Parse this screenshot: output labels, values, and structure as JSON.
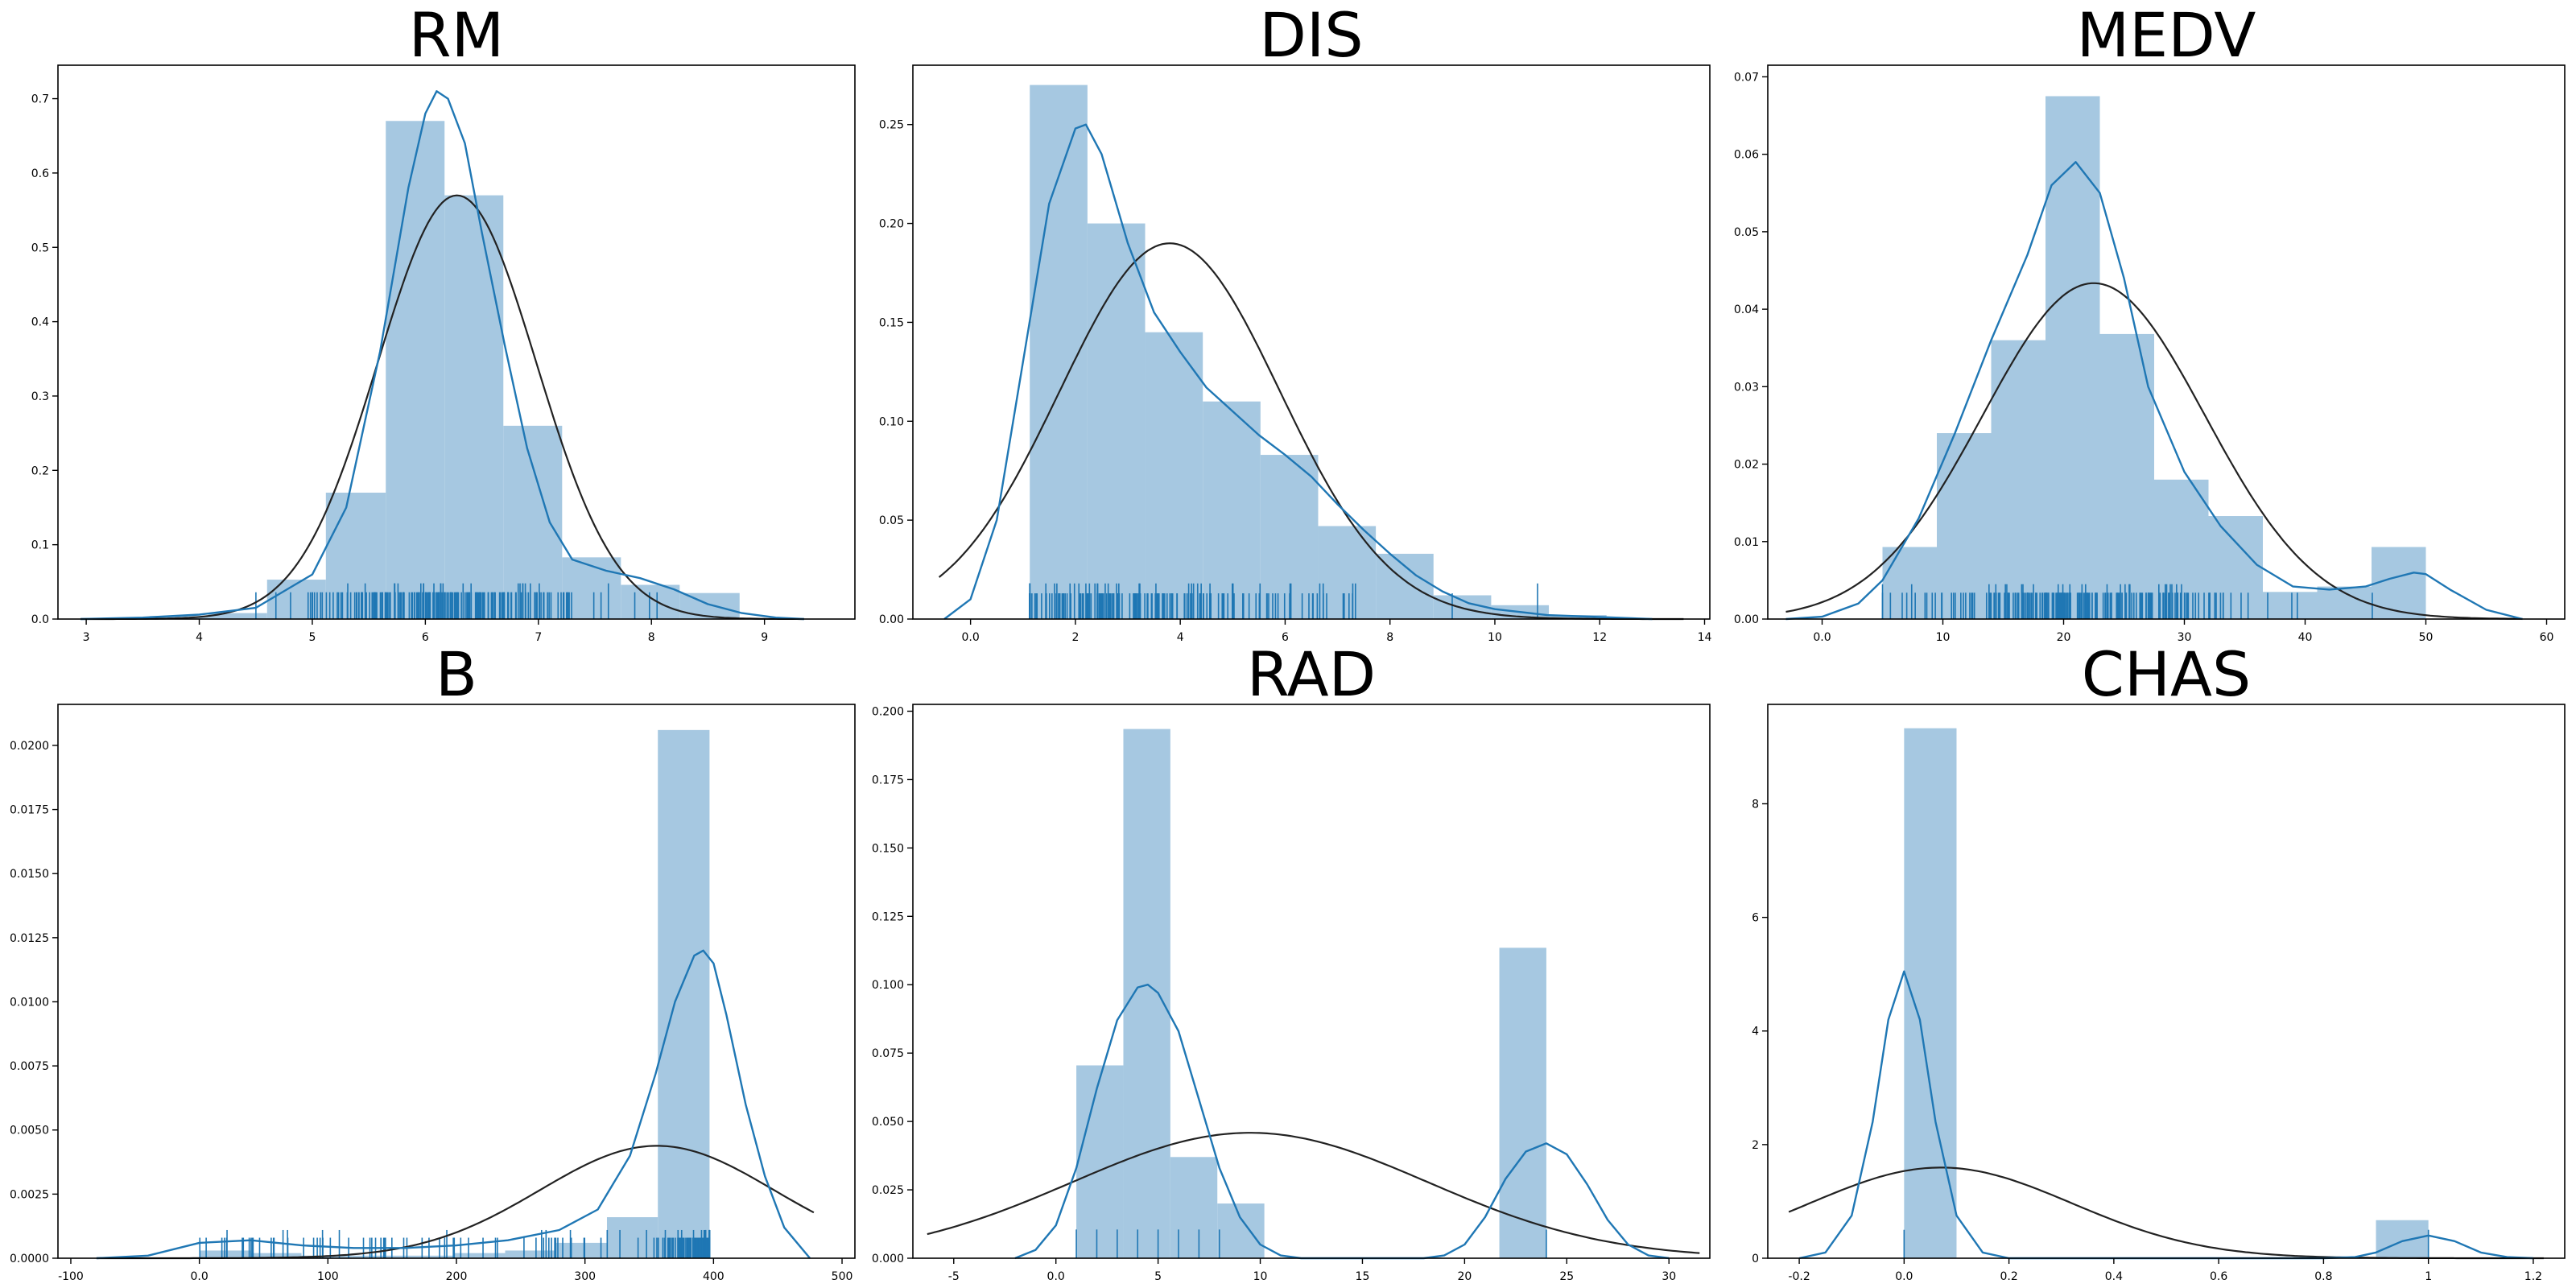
{
  "figure": {
    "colors": {
      "hist": "#a6c8e1",
      "kde": "#1f77b4",
      "rug": "#1f77b4",
      "fit": "#222222"
    }
  },
  "chart_data": [
    {
      "type": "bar",
      "title": "RM",
      "xlim": [
        2.75,
        9.8
      ],
      "ylim": [
        0,
        0.745
      ],
      "xticks": [
        3,
        4,
        5,
        6,
        7,
        8,
        9
      ],
      "yticks": [
        0.0,
        0.1,
        0.2,
        0.3,
        0.4,
        0.5,
        0.6,
        0.7
      ],
      "ytick_decimals": 1,
      "hist": {
        "edges": [
          3.56,
          4.08,
          4.6,
          5.12,
          5.65,
          6.17,
          6.69,
          7.21,
          7.73,
          8.25,
          8.78
        ],
        "heights": [
          0.004,
          0.008,
          0.053,
          0.17,
          0.67,
          0.57,
          0.26,
          0.083,
          0.046,
          0.035
        ]
      },
      "kde": [
        [
          2.95,
          0
        ],
        [
          3.5,
          0.002
        ],
        [
          4,
          0.006
        ],
        [
          4.5,
          0.015
        ],
        [
          5,
          0.06
        ],
        [
          5.3,
          0.15
        ],
        [
          5.6,
          0.36
        ],
        [
          5.85,
          0.58
        ],
        [
          6.0,
          0.68
        ],
        [
          6.1,
          0.71
        ],
        [
          6.2,
          0.7
        ],
        [
          6.35,
          0.64
        ],
        [
          6.5,
          0.52
        ],
        [
          6.7,
          0.37
        ],
        [
          6.9,
          0.23
        ],
        [
          7.1,
          0.13
        ],
        [
          7.3,
          0.08
        ],
        [
          7.6,
          0.065
        ],
        [
          7.9,
          0.055
        ],
        [
          8.2,
          0.04
        ],
        [
          8.5,
          0.02
        ],
        [
          8.8,
          0.008
        ],
        [
          9.1,
          0.002
        ],
        [
          9.35,
          0
        ]
      ],
      "normal": {
        "mean": 6.28,
        "sd": 0.7,
        "from": 2.95,
        "to": 9.35
      },
      "rug": {
        "count": 220,
        "min": 3.6,
        "max": 8.8,
        "mode": 6.2,
        "spread": 0.7,
        "tall": 0.048,
        "short": 0.036
      }
    },
    {
      "type": "bar",
      "title": "DIS",
      "xlim": [
        -1.1,
        14.1
      ],
      "ylim": [
        0,
        0.28
      ],
      "xticks": [
        0,
        2,
        4,
        6,
        8,
        10,
        12,
        14
      ],
      "yticks": [
        0.0,
        0.05,
        0.1,
        0.15,
        0.2,
        0.25
      ],
      "ytick_decimals": 2,
      "hist": {
        "edges": [
          1.13,
          2.23,
          3.33,
          4.43,
          5.53,
          6.63,
          7.73,
          8.83,
          9.93,
          11.03,
          12.13
        ],
        "heights": [
          0.27,
          0.2,
          0.145,
          0.11,
          0.083,
          0.047,
          0.033,
          0.012,
          0.007,
          0.002
        ]
      },
      "kde": [
        [
          -0.5,
          0
        ],
        [
          0,
          0.01
        ],
        [
          0.5,
          0.05
        ],
        [
          1,
          0.13
        ],
        [
          1.5,
          0.21
        ],
        [
          2,
          0.248
        ],
        [
          2.2,
          0.25
        ],
        [
          2.5,
          0.235
        ],
        [
          3,
          0.19
        ],
        [
          3.5,
          0.155
        ],
        [
          4,
          0.135
        ],
        [
          4.5,
          0.117
        ],
        [
          5,
          0.105
        ],
        [
          5.5,
          0.093
        ],
        [
          6,
          0.083
        ],
        [
          6.5,
          0.072
        ],
        [
          7,
          0.058
        ],
        [
          7.5,
          0.045
        ],
        [
          8,
          0.033
        ],
        [
          8.5,
          0.022
        ],
        [
          9,
          0.014
        ],
        [
          9.5,
          0.008
        ],
        [
          10,
          0.005
        ],
        [
          11,
          0.002
        ],
        [
          12,
          0.001
        ],
        [
          13,
          0
        ]
      ],
      "normal": {
        "mean": 3.8,
        "sd": 2.1,
        "from": -0.6,
        "to": 13.6
      },
      "rug": {
        "count": 220,
        "min": 1.13,
        "max": 12.1,
        "mode": 3.2,
        "spread": 2.0,
        "tall": 0.018,
        "short": 0.013
      }
    },
    {
      "type": "bar",
      "title": "MEDV",
      "xlim": [
        -4.5,
        61.5
      ],
      "ylim": [
        0,
        0.0715
      ],
      "xticks": [
        0,
        10,
        20,
        30,
        40,
        50,
        60
      ],
      "yticks": [
        0.0,
        0.01,
        0.02,
        0.03,
        0.04,
        0.05,
        0.06,
        0.07
      ],
      "ytick_decimals": 2,
      "hist": {
        "edges": [
          5.0,
          9.5,
          14.0,
          18.5,
          23.0,
          27.5,
          32.0,
          36.5,
          41.0,
          45.5,
          50.0
        ],
        "heights": [
          0.0093,
          0.024,
          0.036,
          0.0675,
          0.0368,
          0.018,
          0.0133,
          0.0035,
          0.0042,
          0.0093
        ]
      },
      "kde": [
        [
          -3,
          0
        ],
        [
          0,
          0.0003
        ],
        [
          3,
          0.002
        ],
        [
          5,
          0.005
        ],
        [
          8,
          0.013
        ],
        [
          11,
          0.024
        ],
        [
          14,
          0.036
        ],
        [
          17,
          0.047
        ],
        [
          19,
          0.056
        ],
        [
          21,
          0.059
        ],
        [
          23,
          0.055
        ],
        [
          25,
          0.044
        ],
        [
          27,
          0.03
        ],
        [
          30,
          0.019
        ],
        [
          33,
          0.012
        ],
        [
          36,
          0.007
        ],
        [
          39,
          0.0042
        ],
        [
          42,
          0.0038
        ],
        [
          45,
          0.0042
        ],
        [
          47,
          0.0052
        ],
        [
          49,
          0.006
        ],
        [
          50,
          0.0058
        ],
        [
          52,
          0.0038
        ],
        [
          55,
          0.0012
        ],
        [
          58,
          0
        ]
      ],
      "normal": {
        "mean": 22.5,
        "sd": 9.2,
        "from": -3,
        "to": 58
      },
      "rug": {
        "count": 220,
        "min": 5,
        "max": 50,
        "mode": 21,
        "spread": 7.5,
        "tall": 0.0045,
        "short": 0.0034
      }
    },
    {
      "type": "bar",
      "title": "B",
      "xlim": [
        -110,
        510
      ],
      "ylim": [
        0,
        0.0216
      ],
      "xticks": [
        -100,
        0,
        100,
        200,
        300,
        400,
        500
      ],
      "yticks": [
        0.0,
        0.0025,
        0.005,
        0.0075,
        0.01,
        0.0125,
        0.015,
        0.0175,
        0.02
      ],
      "ytick_decimals": 4,
      "hist": {
        "edges": [
          0.32,
          39.9,
          79.5,
          119.1,
          158.7,
          198.3,
          237.9,
          277.5,
          317.1,
          356.7,
          396.9
        ],
        "heights": [
          0.0003,
          0.0002,
          0.0001,
          0.0001,
          0.0001,
          0.0002,
          0.0003,
          0.0006,
          0.0016,
          0.0206
        ]
      },
      "kde": [
        [
          -80,
          0
        ],
        [
          -40,
          0.0001
        ],
        [
          0,
          0.0006
        ],
        [
          40,
          0.0007
        ],
        [
          80,
          0.0005
        ],
        [
          120,
          0.0004
        ],
        [
          160,
          0.0004
        ],
        [
          200,
          0.0005
        ],
        [
          240,
          0.0007
        ],
        [
          280,
          0.0011
        ],
        [
          310,
          0.0019
        ],
        [
          335,
          0.004
        ],
        [
          355,
          0.0072
        ],
        [
          370,
          0.01
        ],
        [
          385,
          0.0118
        ],
        [
          392,
          0.012
        ],
        [
          400,
          0.0115
        ],
        [
          410,
          0.0095
        ],
        [
          425,
          0.006
        ],
        [
          440,
          0.0032
        ],
        [
          455,
          0.0012
        ],
        [
          475,
          0
        ]
      ],
      "normal": {
        "mean": 356,
        "sd": 91,
        "from": -80,
        "to": 478
      },
      "rug": {
        "count": 210,
        "min": 0.3,
        "max": 396.9,
        "mode": 390,
        "spread": 14,
        "tall": 0.0011,
        "short": 0.0008,
        "low_fraction": 0.35
      }
    },
    {
      "type": "bar",
      "title": "RAD",
      "xlim": [
        -7,
        32
      ],
      "ylim": [
        0,
        0.2025
      ],
      "xticks": [
        -5,
        0,
        5,
        10,
        15,
        20,
        25,
        30
      ],
      "yticks": [
        0.0,
        0.025,
        0.05,
        0.075,
        0.1,
        0.125,
        0.15,
        0.175,
        0.2
      ],
      "ytick_decimals": 3,
      "hist": {
        "edges": [
          1.0,
          3.3,
          5.6,
          7.9,
          10.2,
          12.5,
          14.8,
          17.1,
          19.4,
          21.7,
          24.0
        ],
        "heights": [
          0.0705,
          0.1935,
          0.037,
          0.02,
          0,
          0,
          0,
          0,
          0,
          0.1135
        ]
      },
      "kde": [
        [
          -2,
          0
        ],
        [
          -1,
          0.003
        ],
        [
          0,
          0.012
        ],
        [
          1,
          0.033
        ],
        [
          2,
          0.062
        ],
        [
          3,
          0.087
        ],
        [
          4,
          0.099
        ],
        [
          4.5,
          0.1
        ],
        [
          5,
          0.097
        ],
        [
          6,
          0.083
        ],
        [
          7,
          0.058
        ],
        [
          8,
          0.033
        ],
        [
          9,
          0.015
        ],
        [
          10,
          0.005
        ],
        [
          11,
          0.001
        ],
        [
          12,
          0
        ],
        [
          18,
          0
        ],
        [
          19,
          0.001
        ],
        [
          20,
          0.005
        ],
        [
          21,
          0.015
        ],
        [
          22,
          0.029
        ],
        [
          23,
          0.039
        ],
        [
          24,
          0.042
        ],
        [
          25,
          0.038
        ],
        [
          26,
          0.027
        ],
        [
          27,
          0.014
        ],
        [
          28,
          0.005
        ],
        [
          29,
          0.001
        ],
        [
          30,
          0
        ]
      ],
      "normal": {
        "mean": 9.5,
        "sd": 8.7,
        "from": -6.3,
        "to": 31.5
      },
      "rug": {
        "values": [
          1,
          2,
          3,
          4,
          5,
          6,
          7,
          8,
          24
        ],
        "tall": 0.0105,
        "short": 0.0105
      }
    },
    {
      "type": "bar",
      "title": "CHAS",
      "xlim": [
        -0.26,
        1.26
      ],
      "ylim": [
        0,
        9.75
      ],
      "xticks": [
        -0.2,
        0.0,
        0.2,
        0.4,
        0.6,
        0.8,
        1.0,
        1.2
      ],
      "yticks": [
        0,
        2,
        4,
        6,
        8
      ],
      "ytick_decimals": 0,
      "hist": {
        "edges": [
          0.0,
          0.1,
          0.2,
          0.3,
          0.4,
          0.5,
          0.6,
          0.7,
          0.8,
          0.9,
          1.0
        ],
        "heights": [
          9.33,
          0,
          0,
          0,
          0,
          0,
          0,
          0,
          0,
          0.67
        ]
      },
      "kde": [
        [
          -0.2,
          0
        ],
        [
          -0.15,
          0.1
        ],
        [
          -0.1,
          0.75
        ],
        [
          -0.06,
          2.4
        ],
        [
          -0.03,
          4.2
        ],
        [
          0,
          5.05
        ],
        [
          0.03,
          4.2
        ],
        [
          0.06,
          2.4
        ],
        [
          0.1,
          0.75
        ],
        [
          0.15,
          0.1
        ],
        [
          0.2,
          0
        ],
        [
          0.8,
          0
        ],
        [
          0.86,
          0.02
        ],
        [
          0.9,
          0.1
        ],
        [
          0.95,
          0.3
        ],
        [
          1.0,
          0.4
        ],
        [
          1.05,
          0.3
        ],
        [
          1.1,
          0.1
        ],
        [
          1.15,
          0.02
        ],
        [
          1.2,
          0
        ]
      ],
      "normal": {
        "mean": 0.07,
        "sd": 0.25,
        "from": -0.22,
        "to": 1.22
      },
      "rug": {
        "values": [
          0.0,
          1.0
        ],
        "tall": 0.5,
        "short": 0.5
      }
    }
  ]
}
